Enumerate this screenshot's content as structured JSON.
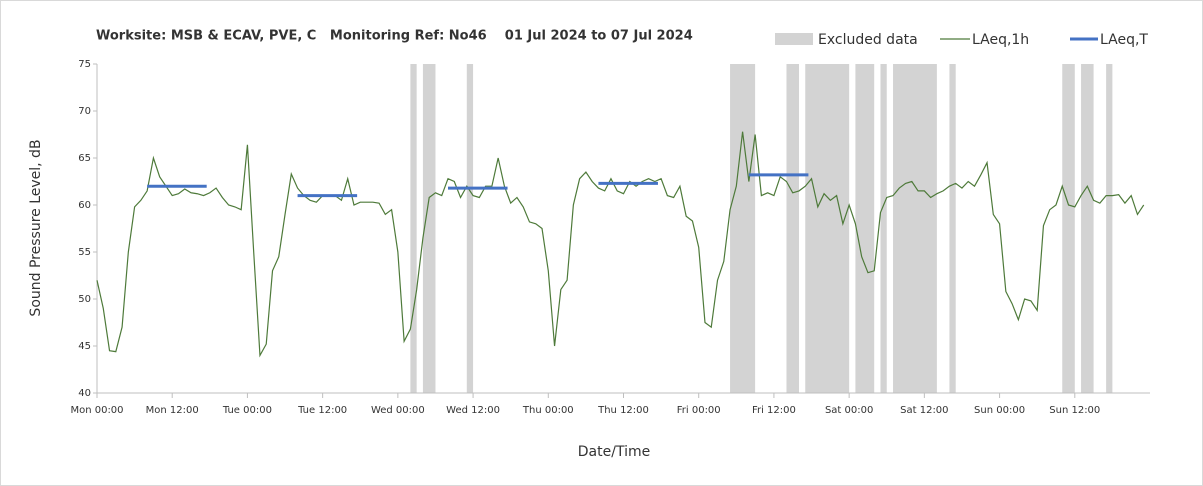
{
  "chart_data": {
    "type": "line",
    "title": "Worksite: MSB & ECAV, PVE, C   Monitoring Ref: No46    01 Jul 2024 to 07 Jul 2024",
    "xlabel": "Date/Time",
    "ylabel": "Sound Pressure Level, dB",
    "xlim": [
      0,
      168
    ],
    "ylim": [
      40,
      75
    ],
    "yticks": [
      40,
      45,
      50,
      55,
      60,
      65,
      70,
      75
    ],
    "xticks": [
      {
        "value": 0,
        "label": "Mon 00:00"
      },
      {
        "value": 12,
        "label": "Mon 12:00"
      },
      {
        "value": 24,
        "label": "Tue 00:00"
      },
      {
        "value": 36,
        "label": "Tue 12:00"
      },
      {
        "value": 48,
        "label": "Wed 00:00"
      },
      {
        "value": 60,
        "label": "Wed 12:00"
      },
      {
        "value": 72,
        "label": "Thu 00:00"
      },
      {
        "value": 84,
        "label": "Thu 12:00"
      },
      {
        "value": 96,
        "label": "Fri 00:00"
      },
      {
        "value": 108,
        "label": "Fri 12:00"
      },
      {
        "value": 120,
        "label": "Sat 00:00"
      },
      {
        "value": 132,
        "label": "Sat 12:00"
      },
      {
        "value": 144,
        "label": "Sun 00:00"
      },
      {
        "value": 156,
        "label": "Sun 12:00"
      }
    ],
    "excluded": {
      "name": "Excluded data",
      "color": "#d3d3d3",
      "ranges": [
        [
          50,
          51
        ],
        [
          52,
          54
        ],
        [
          59,
          60
        ],
        [
          101,
          105
        ],
        [
          110,
          112
        ],
        [
          113,
          120
        ],
        [
          121,
          124
        ],
        [
          125,
          126
        ],
        [
          127,
          134
        ],
        [
          136,
          137
        ],
        [
          154,
          156
        ],
        [
          157,
          159
        ],
        [
          161,
          162
        ]
      ]
    },
    "series": [
      {
        "name": "LAeq,1h",
        "color": "#4e7a3a",
        "x": [
          0,
          1,
          2,
          3,
          4,
          5,
          6,
          7,
          8,
          9,
          10,
          11,
          12,
          13,
          14,
          15,
          16,
          17,
          18,
          19,
          20,
          21,
          22,
          23,
          24,
          25,
          26,
          27,
          28,
          29,
          30,
          31,
          32,
          33,
          34,
          35,
          36,
          37,
          38,
          39,
          40,
          41,
          42,
          43,
          44,
          45,
          46,
          47,
          48,
          49,
          50,
          51,
          52,
          53,
          54,
          55,
          56,
          57,
          58,
          59,
          60,
          61,
          62,
          63,
          64,
          65,
          66,
          67,
          68,
          69,
          70,
          71,
          72,
          73,
          74,
          75,
          76,
          77,
          78,
          79,
          80,
          81,
          82,
          83,
          84,
          85,
          86,
          87,
          88,
          89,
          90,
          91,
          92,
          93,
          94,
          95,
          96,
          97,
          98,
          99,
          100,
          101,
          102,
          103,
          104,
          105,
          106,
          107,
          108,
          109,
          110,
          111,
          112,
          113,
          114,
          115,
          116,
          117,
          118,
          119,
          120,
          121,
          122,
          123,
          124,
          125,
          126,
          127,
          128,
          129,
          130,
          131,
          132,
          133,
          134,
          135,
          136,
          137,
          138,
          139,
          140,
          141,
          142,
          143,
          144,
          145,
          146,
          147,
          148,
          149,
          150,
          151,
          152,
          153,
          154,
          155,
          156,
          157,
          158,
          159,
          160,
          161,
          162,
          163,
          164,
          165,
          166,
          167
        ],
        "values": [
          52,
          49,
          44.5,
          44.4,
          47,
          55,
          59.8,
          60.5,
          61.5,
          65,
          63,
          62,
          61,
          61.2,
          61.7,
          61.3,
          61.2,
          61,
          61.3,
          61.8,
          60.8,
          60,
          59.8,
          59.5,
          66.4,
          55,
          44,
          45.2,
          53,
          54.5,
          59,
          63.3,
          61.8,
          61,
          60.5,
          60.3,
          61,
          61,
          61,
          60.5,
          62.8,
          60,
          60.3,
          60.3,
          60.3,
          60.2,
          59,
          59.5,
          55,
          45.5,
          46.8,
          51,
          56.5,
          60.8,
          61.3,
          61,
          62.8,
          62.5,
          60.8,
          62,
          61,
          60.8,
          62,
          62,
          65,
          62,
          60.2,
          60.8,
          59.8,
          58.2,
          58,
          57.5,
          53,
          45,
          51,
          52,
          60,
          62.8,
          63.5,
          62.5,
          61.8,
          61.5,
          62.8,
          61.5,
          61.2,
          62.5,
          62,
          62.5,
          62.8,
          62.5,
          62.8,
          61,
          60.8,
          62,
          58.8,
          58.3,
          55.5,
          47.5,
          47,
          52,
          54,
          59.5,
          62,
          67.8,
          62.5,
          67.5,
          61,
          61.3,
          61,
          63,
          62.5,
          61.3,
          61.5,
          62,
          62.8,
          59.8,
          61.2,
          60.5,
          61,
          58,
          60,
          58,
          54.5,
          52.8,
          53,
          59.2,
          60.8,
          61,
          61.8,
          62.3,
          62.5,
          61.5,
          61.5,
          60.8,
          61.2,
          61.5,
          62,
          62.3,
          61.8,
          62.5,
          62,
          63.2,
          64.5,
          59,
          58,
          50.8,
          49.5,
          47.8,
          50,
          49.8,
          48.8,
          57.8,
          59.5,
          60,
          62,
          60,
          59.8,
          61,
          62,
          60.5,
          60.2,
          61,
          61,
          61.1,
          60.2,
          61,
          59,
          60
        ]
      },
      {
        "name": "LAeq,T",
        "color": "#4472c4",
        "segments": [
          {
            "start": 8,
            "end": 17.5,
            "value": 62
          },
          {
            "start": 32,
            "end": 41.5,
            "value": 61
          },
          {
            "start": 56,
            "end": 65.5,
            "value": 61.8
          },
          {
            "start": 80,
            "end": 89.5,
            "value": 62.3
          },
          {
            "start": 104,
            "end": 113.5,
            "value": 63.2
          }
        ]
      }
    ]
  }
}
